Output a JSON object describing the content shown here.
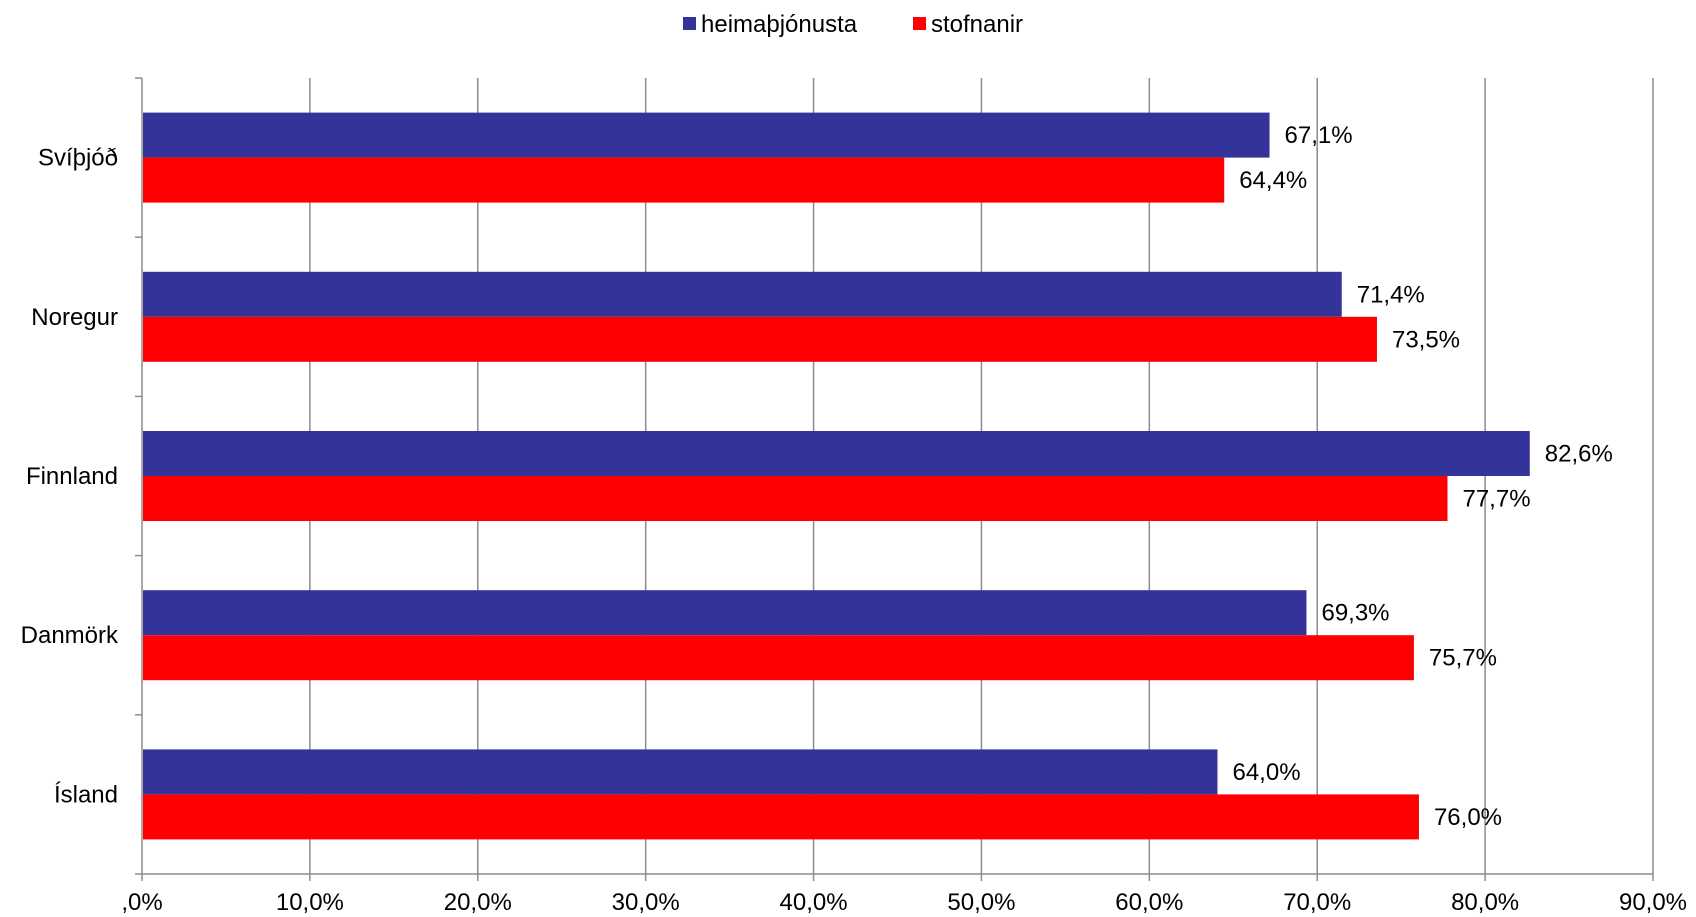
{
  "chart_data": {
    "type": "bar",
    "orientation": "horizontal",
    "categories": [
      "Svíþjóð",
      "Noregur",
      "Finnland",
      "Danmörk",
      "Ísland"
    ],
    "series": [
      {
        "name": "heimaþjónusta",
        "color": "#333399",
        "values": [
          67.1,
          71.4,
          82.6,
          69.3,
          64.0
        ],
        "labels": [
          "67,1%",
          "71,4%",
          "82,6%",
          "69,3%",
          "64,0%"
        ]
      },
      {
        "name": "stofnanir",
        "color": "#ff0000",
        "values": [
          64.4,
          73.5,
          77.7,
          75.7,
          76.0
        ],
        "labels": [
          "64,4%",
          "73,5%",
          "77,7%",
          "75,7%",
          "76,0%"
        ]
      }
    ],
    "x_ticks": [
      ",0%",
      "10,0%",
      "20,0%",
      "30,0%",
      "40,0%",
      "50,0%",
      "60,0%",
      "70,0%",
      "80,0%",
      "90,0%"
    ],
    "xlim": [
      0,
      90
    ],
    "grid": true,
    "legend_position": "top"
  }
}
